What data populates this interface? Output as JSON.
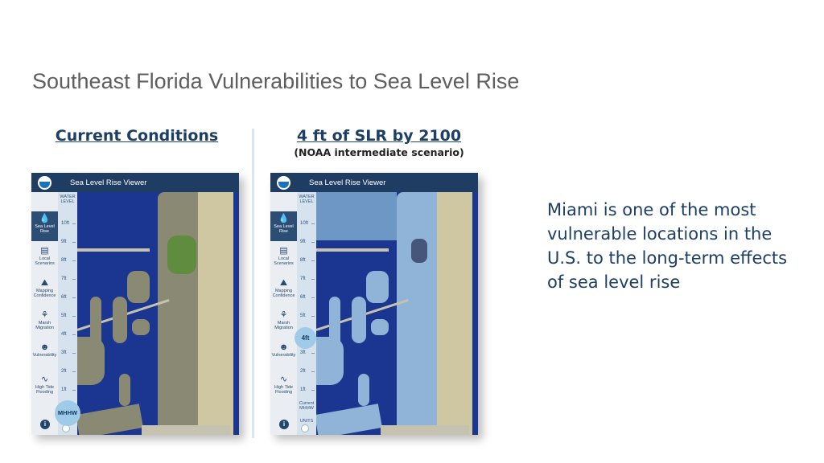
{
  "slide": {
    "title": "Southeast Florida Vulnerabilities to Sea Level Rise",
    "side_text": "Miami is one of the most vulnerable locations in the U.S. to the long-term effects of sea level rise"
  },
  "left": {
    "heading": "Current Conditions",
    "viewer_title": "Sea Level Rise Viewer",
    "knob": "MHHW"
  },
  "right": {
    "heading": "4 ft of SLR by 2100",
    "subheading": "(NOAA intermediate scenario)",
    "viewer_title": "Sea Level Rise Viewer",
    "knob": "4ft",
    "bottom_label": "Current MHHW"
  },
  "viewer": {
    "water_level_label": "WATER LEVEL",
    "ticks": [
      "10ft",
      "9ft",
      "8ft",
      "7ft",
      "6ft",
      "5ft",
      "4ft",
      "3ft",
      "2ft",
      "1ft"
    ],
    "units_label": "UNITS",
    "info_label": "i",
    "sidebar": [
      {
        "label": "Sea Level Rise",
        "icon": "water-drop-icon",
        "glyph": "💧"
      },
      {
        "label": "Local Scenarios",
        "icon": "chart-icon",
        "glyph": "▤"
      },
      {
        "label": "Mapping Confidence",
        "icon": "map-icon",
        "glyph": "⛰"
      },
      {
        "label": "Marsh Migration",
        "icon": "grass-icon",
        "glyph": "⚘"
      },
      {
        "label": "Vulnerability",
        "icon": "person-icon",
        "glyph": "☻"
      },
      {
        "label": "High Tide Flooding",
        "icon": "pulse-icon",
        "glyph": "∿"
      }
    ]
  },
  "colors": {
    "heading": "#1d3f66",
    "title_grey": "#5e5e5e",
    "viewer_bar": "#1f3c63",
    "water": "#1b3690",
    "land_current": "#7f806b",
    "flooded": "#8fb4d8"
  }
}
